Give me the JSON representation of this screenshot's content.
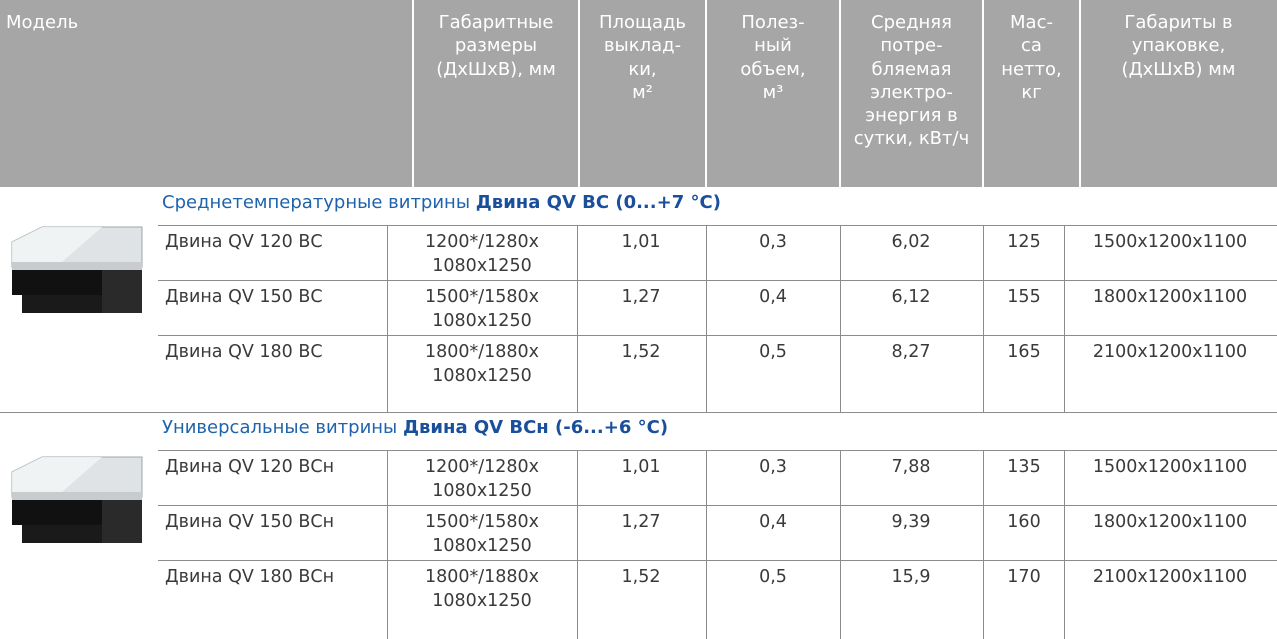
{
  "table": {
    "header": [
      [
        "Модель"
      ],
      [
        "Габаритные",
        "размеры",
        "(ДхШхВ), мм"
      ],
      [
        "Площадь",
        "выклад-",
        "ки,",
        "м²"
      ],
      [
        "Полез-",
        "ный",
        "объем,",
        "м³"
      ],
      [
        "Средняя",
        "потре-",
        "бляемая",
        "электро-",
        "энергия в",
        "сутки, кВт/ч"
      ],
      [
        "Мас-",
        "са",
        "нетто,",
        "кг"
      ],
      [
        "Габариты в",
        "упаковке,",
        "(ДхШхВ) мм"
      ]
    ],
    "sections": [
      {
        "title": "Среднетемпературные витрины ",
        "title_bold": "Двина QV ВС (0...+7 °C)",
        "rows": [
          [
            "Двина QV 120 ВС",
            [
              "1200*/1280x",
              "1080x1250"
            ],
            "1,01",
            "0,3",
            "6,02",
            "125",
            "1500x1200x1100"
          ],
          [
            "Двина QV 150 ВС",
            [
              "1500*/1580x",
              "1080x1250"
            ],
            "1,27",
            "0,4",
            "6,12",
            "155",
            "1800x1200x1100"
          ],
          [
            "Двина QV 180 ВС",
            [
              "1800*/1880x",
              "1080x1250"
            ],
            "1,52",
            "0,5",
            "8,27",
            "165",
            "2100x1200x1100"
          ]
        ]
      },
      {
        "title": "Универсальные витрины ",
        "title_bold": "Двина QV ВСн (-6...+6 °C)",
        "rows": [
          [
            "Двина QV 120 ВСн",
            [
              "1200*/1280x",
              "1080x1250"
            ],
            "1,01",
            "0,3",
            "7,88",
            "135",
            "1500x1200x1100"
          ],
          [
            "Двина QV 150 ВСн",
            [
              "1500*/1580x",
              "1080x1250"
            ],
            "1,27",
            "0,4",
            "9,39",
            "160",
            "1800x1200x1100"
          ],
          [
            "Двина QV 180 ВСн",
            [
              "1800*/1880x",
              "1080x1250"
            ],
            "1,52",
            "0,5",
            "15,9",
            "170",
            "2100x1200x1100"
          ]
        ]
      }
    ]
  }
}
